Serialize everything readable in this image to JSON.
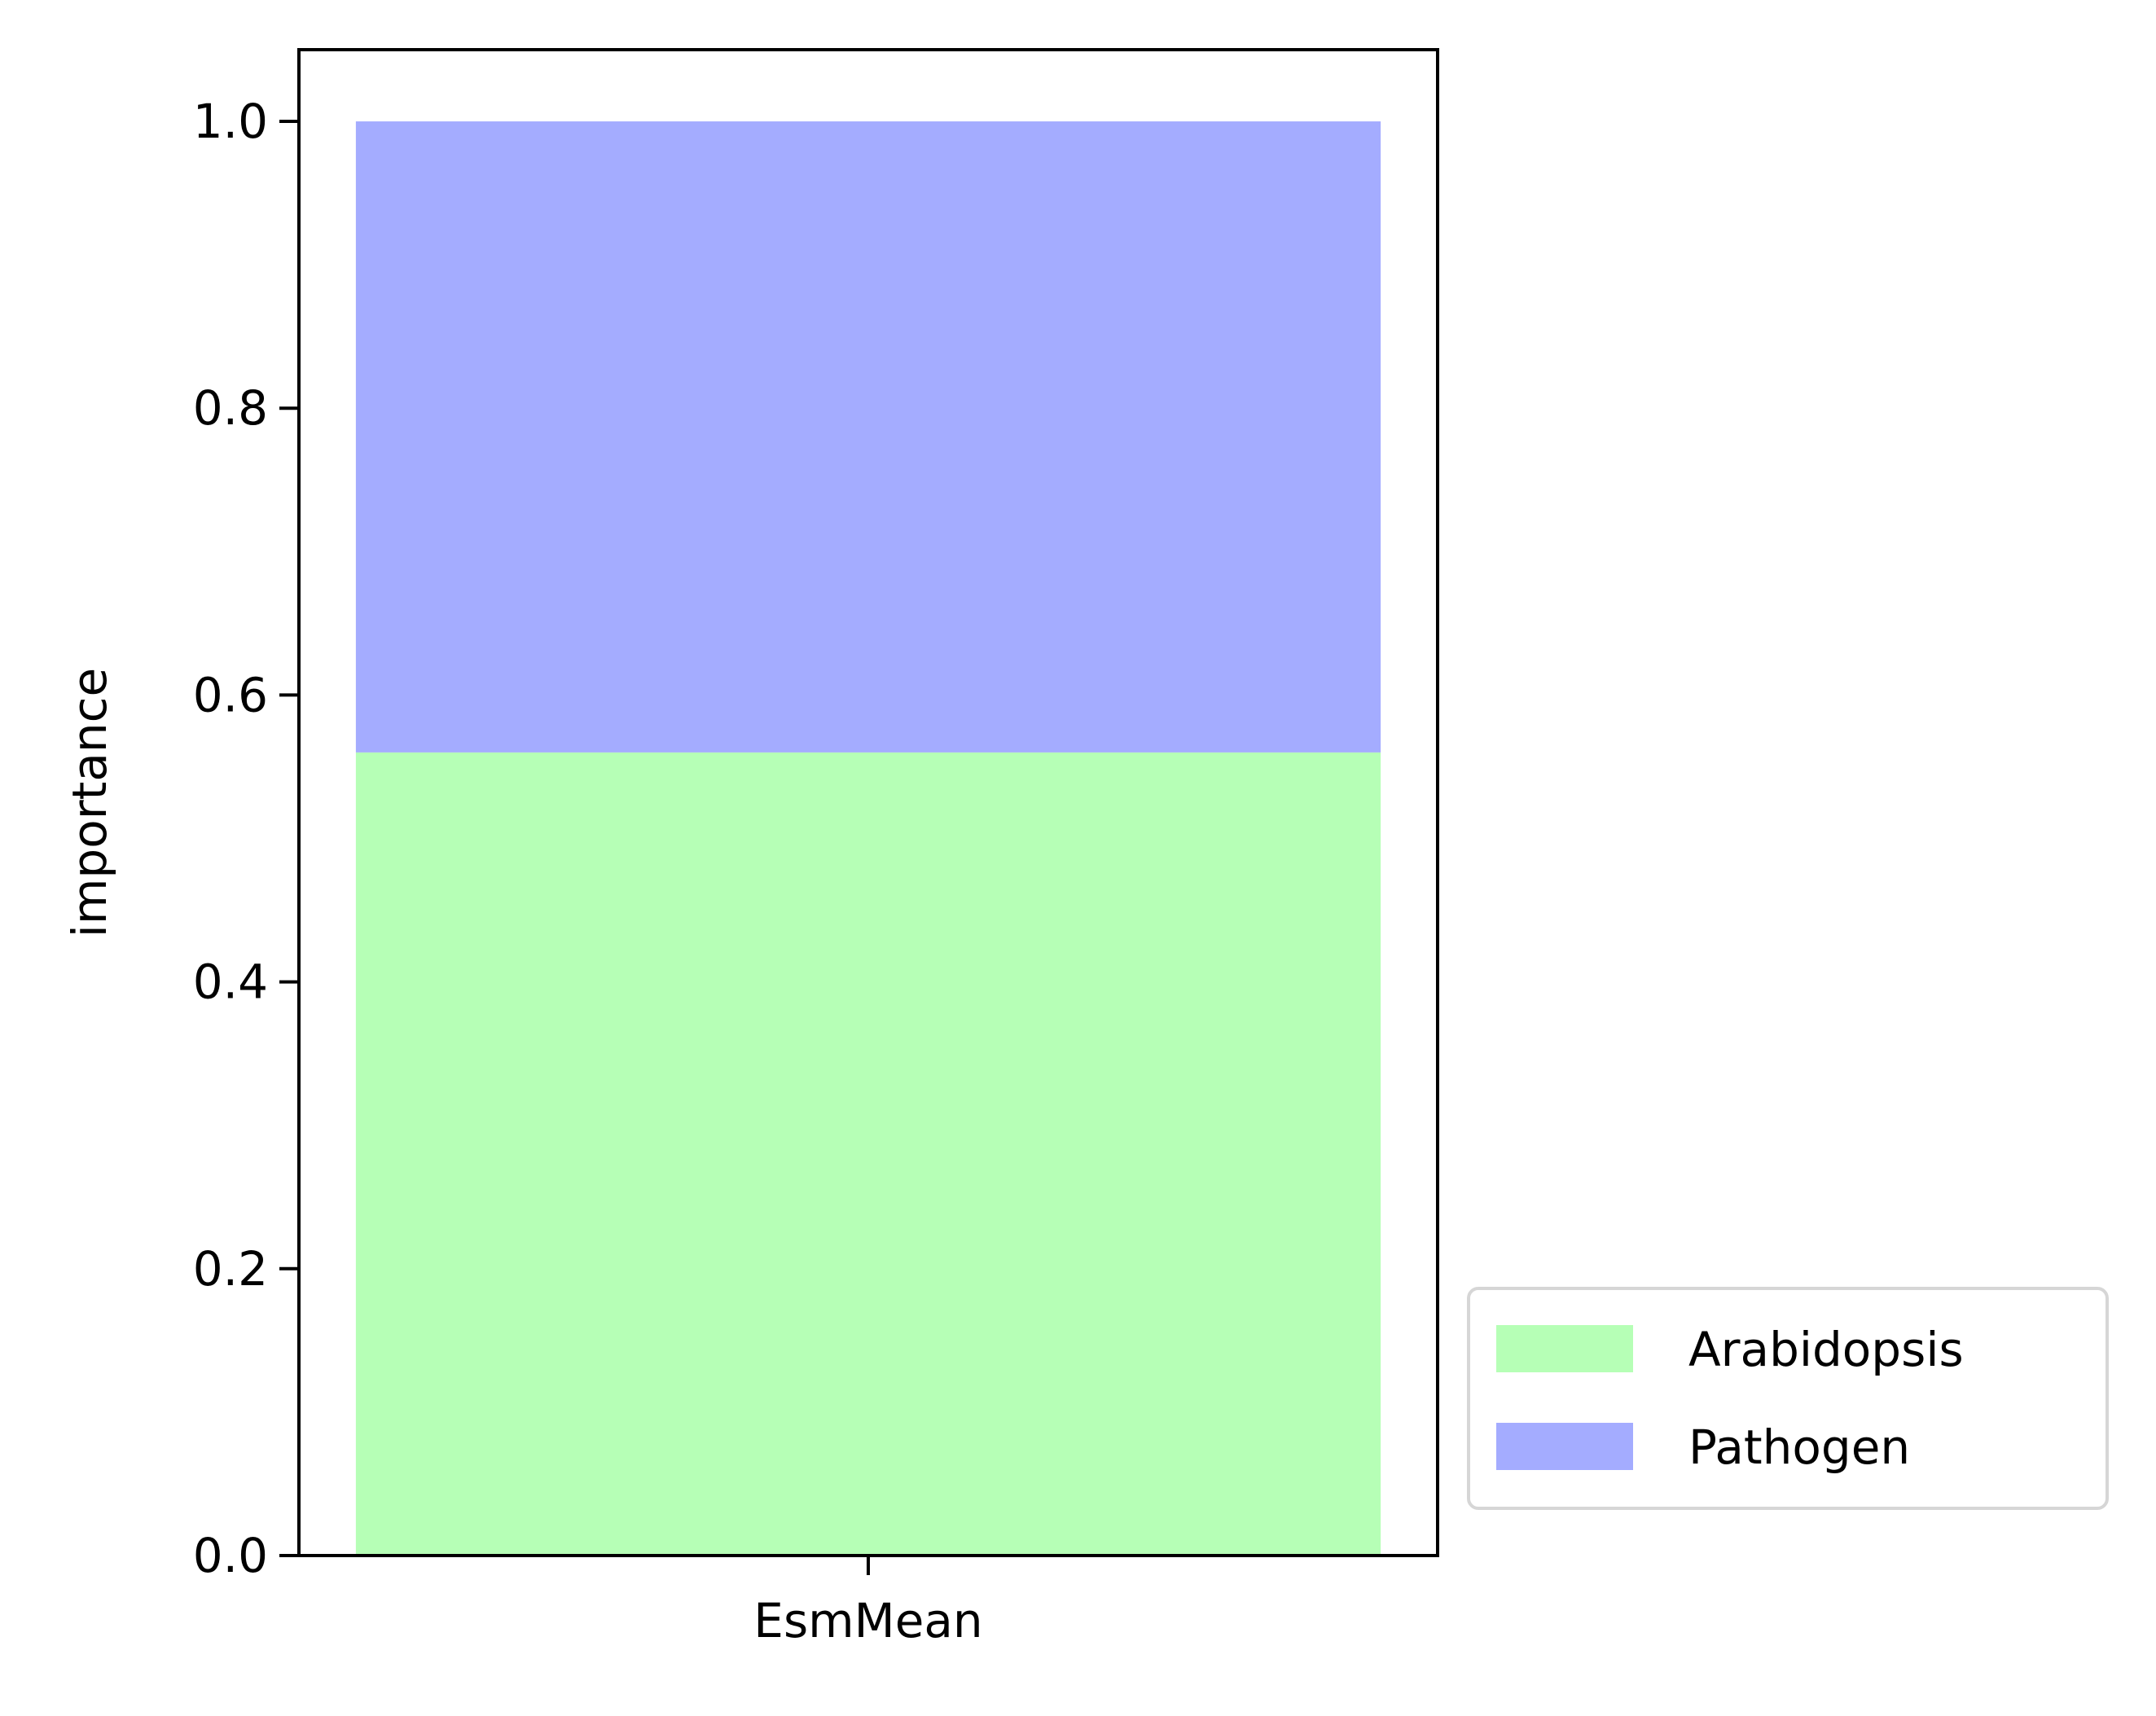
{
  "chart_data": {
    "type": "bar",
    "stacked": true,
    "categories": [
      "EsmMean"
    ],
    "series": [
      {
        "name": "Arabidopsis",
        "values": [
          0.56
        ],
        "color": "#b6ffb6"
      },
      {
        "name": "Pathogen",
        "values": [
          0.44
        ],
        "color": "#a4acff"
      }
    ],
    "xlabel": "",
    "ylabel": "importance",
    "ylim": [
      0,
      1.05
    ],
    "yticks": [
      "0.0",
      "0.2",
      "0.4",
      "0.6",
      "0.8",
      "1.0"
    ],
    "grid": false,
    "legend_position": "lower-right-outside"
  }
}
